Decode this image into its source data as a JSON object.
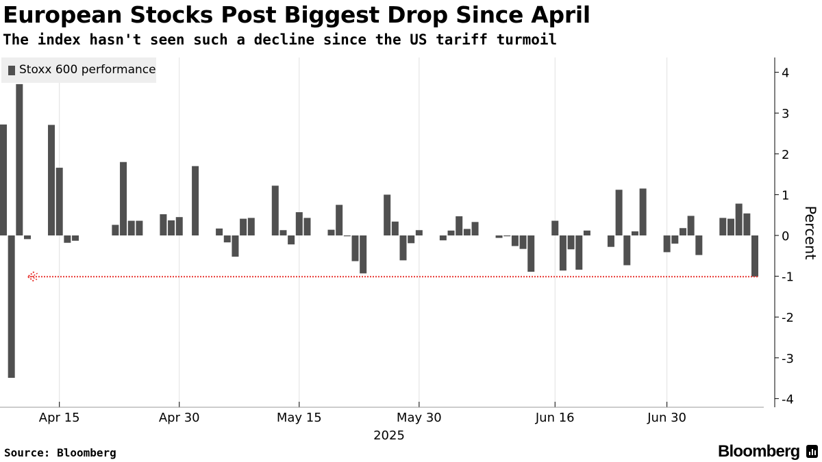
{
  "header": {
    "title": "European Stocks Post Biggest Drop Since April",
    "subtitle": "The index hasn't seen such a decline since the US tariff turmoil"
  },
  "footer": {
    "source": "Source: Bloomberg",
    "brand": "Bloomberg",
    "brand_icon": "bloomberg-terminal-icon"
  },
  "colors": {
    "bar": "#505050",
    "grid": "#e0e0e0",
    "annotation": "#e8332f",
    "legend_bg": "#eeeeee"
  },
  "chart_data": {
    "type": "bar",
    "title": "European Stocks Post Biggest Drop Since April",
    "subtitle": "The index hasn't seen such a decline since the US tariff turmoil",
    "ylabel": "Percent",
    "xlabel": "2025",
    "ylim": [
      -4.2,
      4.4
    ],
    "yticks": [
      4,
      3,
      2,
      1,
      0,
      -1,
      -2,
      -3,
      -4
    ],
    "y_axis_position": "right",
    "grid": "vertical",
    "legend": {
      "label": "Stoxx 600 performance",
      "position": "top-left"
    },
    "x_tick_labels": [
      "Apr 15",
      "Apr 30",
      "May 15",
      "May 30",
      "Jun 16",
      "Jun 30"
    ],
    "x_tick_dates": [
      "2025-04-15",
      "2025-04-30",
      "2025-05-15",
      "2025-05-30",
      "2025-06-16",
      "2025-06-30"
    ],
    "series": [
      {
        "name": "Stoxx 600 performance",
        "x": [
          "2025-04-08",
          "2025-04-09",
          "2025-04-10",
          "2025-04-11",
          "2025-04-14",
          "2025-04-15",
          "2025-04-16",
          "2025-04-17",
          "2025-04-22",
          "2025-04-23",
          "2025-04-24",
          "2025-04-25",
          "2025-04-28",
          "2025-04-29",
          "2025-04-30",
          "2025-05-02",
          "2025-05-05",
          "2025-05-06",
          "2025-05-07",
          "2025-05-08",
          "2025-05-09",
          "2025-05-12",
          "2025-05-13",
          "2025-05-14",
          "2025-05-15",
          "2025-05-16",
          "2025-05-19",
          "2025-05-20",
          "2025-05-21",
          "2025-05-22",
          "2025-05-23",
          "2025-05-26",
          "2025-05-27",
          "2025-05-28",
          "2025-05-29",
          "2025-05-30",
          "2025-06-02",
          "2025-06-03",
          "2025-06-04",
          "2025-06-05",
          "2025-06-06",
          "2025-06-09",
          "2025-06-10",
          "2025-06-11",
          "2025-06-12",
          "2025-06-13",
          "2025-06-16",
          "2025-06-17",
          "2025-06-18",
          "2025-06-19",
          "2025-06-20",
          "2025-06-23",
          "2025-06-24",
          "2025-06-25",
          "2025-06-26",
          "2025-06-27",
          "2025-06-30",
          "2025-07-01",
          "2025-07-02",
          "2025-07-03",
          "2025-07-04",
          "2025-07-07",
          "2025-07-08",
          "2025-07-09",
          "2025-07-10",
          "2025-07-11"
        ],
        "values": [
          2.72,
          -3.49,
          3.71,
          -0.09,
          2.71,
          1.66,
          -0.18,
          -0.13,
          0.26,
          1.8,
          0.36,
          0.36,
          0.52,
          0.37,
          0.45,
          1.7,
          0.17,
          -0.17,
          -0.52,
          0.41,
          0.43,
          1.22,
          0.13,
          -0.22,
          0.57,
          0.43,
          0.14,
          0.75,
          -0.02,
          -0.63,
          -0.93,
          1.0,
          0.34,
          -0.61,
          -0.19,
          0.13,
          -0.12,
          0.12,
          0.47,
          0.16,
          0.33,
          -0.06,
          -0.02,
          -0.26,
          -0.33,
          -0.89,
          0.36,
          -0.86,
          -0.34,
          -0.84,
          0.12,
          -0.28,
          1.12,
          -0.73,
          0.1,
          1.15,
          -0.41,
          -0.2,
          0.18,
          0.48,
          -0.48,
          0.43,
          0.41,
          0.78,
          0.54,
          -1.01
        ]
      }
    ],
    "annotations": [
      {
        "type": "dotted-arrow",
        "from_date": "2025-07-11",
        "to_date": "2025-04-09",
        "y": -1.01,
        "label": ""
      }
    ]
  }
}
